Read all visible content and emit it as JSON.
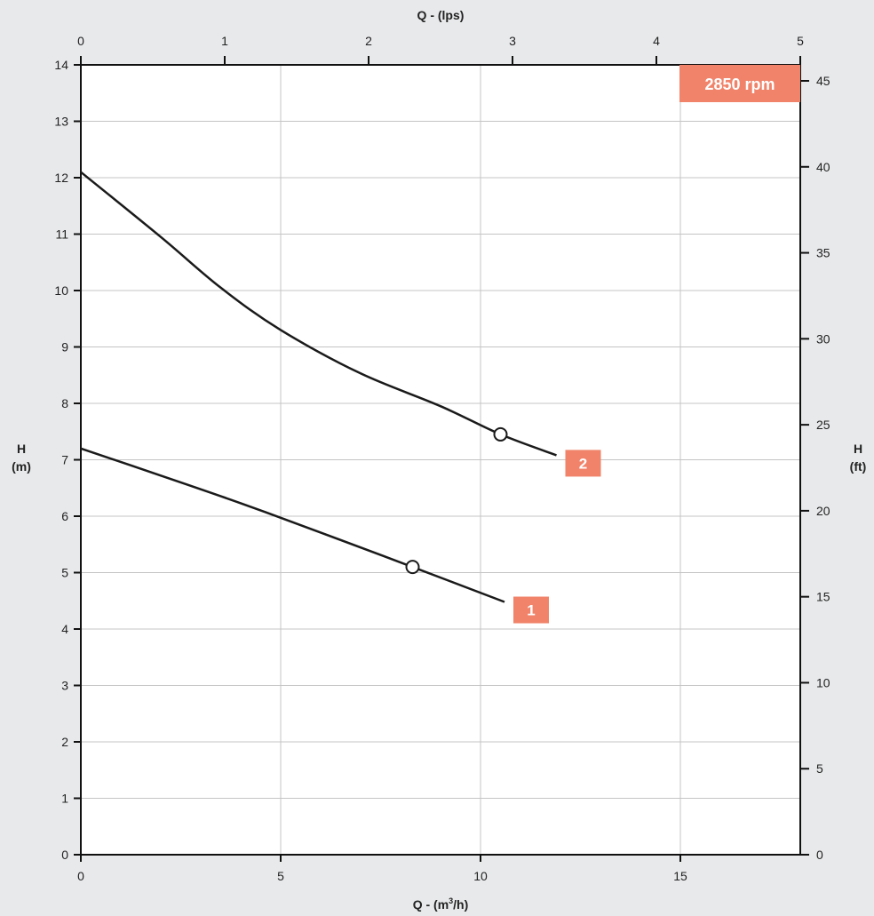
{
  "chart_data": {
    "type": "line",
    "title": "",
    "speed_label": "2850 rpm",
    "top_axis": {
      "label": "Q - (lps)",
      "ticks": [
        "0",
        "1",
        "2",
        "3",
        "4",
        "5"
      ],
      "range": [
        0,
        5
      ]
    },
    "bottom_axis": {
      "label_main": "Q - (m",
      "label_sup": "3",
      "label_end": "/h)",
      "ticks": [
        "0",
        "5",
        "10",
        "15"
      ],
      "range": [
        0,
        18
      ]
    },
    "left_axis": {
      "label_line1": "H",
      "label_line2": "(m)",
      "ticks": [
        "0",
        "1",
        "2",
        "3",
        "4",
        "5",
        "6",
        "7",
        "8",
        "9",
        "10",
        "11",
        "12",
        "13",
        "14"
      ],
      "range": [
        0,
        14
      ]
    },
    "right_axis": {
      "label_line1": "H",
      "label_line2": "(ft)",
      "ticks": [
        "0",
        "5",
        "10",
        "15",
        "20",
        "25",
        "30",
        "35",
        "40",
        "45"
      ],
      "range": [
        0,
        45.93
      ]
    },
    "grid": true,
    "series": [
      {
        "name": "1",
        "x": [
          0,
          2,
          4,
          6,
          8.3,
          10.6
        ],
        "y": [
          7.2,
          6.72,
          6.23,
          5.71,
          5.1,
          4.48
        ],
        "operating_point": [
          8.3,
          5.1
        ]
      },
      {
        "name": "2",
        "x": [
          0,
          2,
          3.5,
          5,
          7,
          9,
          10.5,
          11.9
        ],
        "y": [
          12.1,
          10.95,
          10.05,
          9.3,
          8.53,
          7.95,
          7.45,
          7.08
        ],
        "operating_point": [
          10.5,
          7.45
        ]
      }
    ],
    "colors": {
      "badge": "#f0836a",
      "line": "#1a1a1a",
      "grid": "#c4c4c4",
      "plot_bg": "#ffffff",
      "page_bg": "#e8e9eb"
    }
  }
}
